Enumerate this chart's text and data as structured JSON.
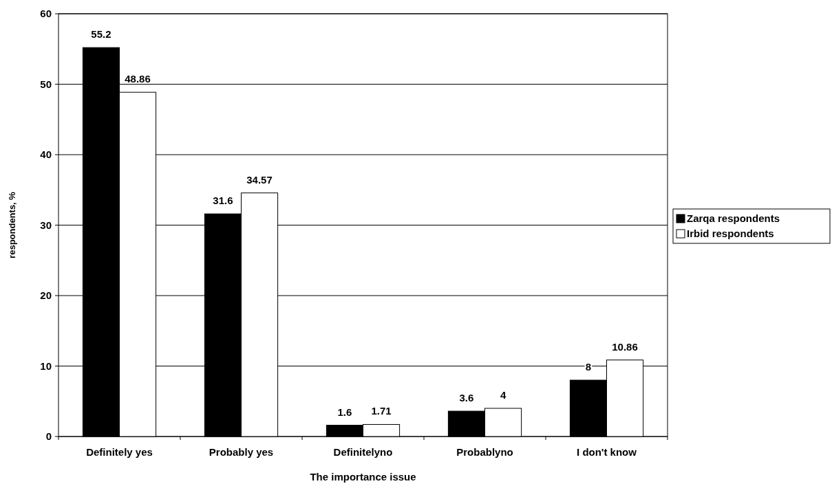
{
  "chart_data": {
    "type": "bar",
    "xlabel": "The importance issue",
    "ylabel": "respondents, %",
    "categories": [
      "Definitely yes",
      "Probably yes",
      "Definitelyno",
      "Probablyno",
      "I don't know"
    ],
    "series": [
      {
        "name": "Zarqa respondents",
        "color": "#000000",
        "values": [
          55.2,
          31.6,
          1.6,
          3.6,
          8
        ]
      },
      {
        "name": "Irbid respondents",
        "color": "#ffffff",
        "values": [
          48.86,
          34.57,
          1.71,
          4,
          10.86
        ]
      }
    ],
    "ylim": [
      0,
      60
    ],
    "yticks": [
      0,
      10,
      20,
      30,
      40,
      50,
      60
    ],
    "grid": "y",
    "legend": "right",
    "data_labels": true
  }
}
